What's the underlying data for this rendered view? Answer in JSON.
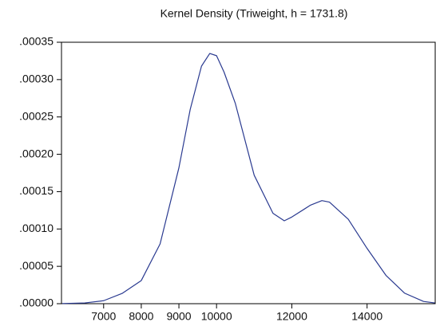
{
  "chart_data": {
    "type": "line",
    "title": "Kernel Density (Triweight, h =  1731.8)",
    "x": [
      5900,
      6500,
      7000,
      7500,
      8000,
      8500,
      9000,
      9300,
      9600,
      9820,
      10000,
      10200,
      10500,
      11000,
      11500,
      11800,
      12000,
      12500,
      12800,
      13000,
      13500,
      14000,
      14500,
      15000,
      15500,
      15800
    ],
    "series": [
      {
        "color": "#2a3a90",
        "values": [
          2e-07,
          1e-06,
          4e-06,
          1.4e-05,
          3.1e-05,
          8e-05,
          0.000182,
          0.00026,
          0.000318,
          0.000335,
          0.000332,
          0.00031,
          0.000268,
          0.000172,
          0.000121,
          0.000111,
          0.000116,
          0.000132,
          0.000138,
          0.000136,
          0.000113,
          7.4e-05,
          3.8e-05,
          1.4e-05,
          3e-06,
          1e-06
        ]
      }
    ],
    "xlim": [
      5880,
      15810
    ],
    "xticks": [
      7000,
      8000,
      9000,
      10000,
      12000,
      14000
    ],
    "ylim": [
      0,
      0.00035
    ],
    "yticks": [
      {
        "value": 0,
        "label": ".00000"
      },
      {
        "value": 5e-05,
        "label": ".00005"
      },
      {
        "value": 0.0001,
        "label": ".00010"
      },
      {
        "value": 0.00015,
        "label": ".00015"
      },
      {
        "value": 0.0002,
        "label": ".00020"
      },
      {
        "value": 0.00025,
        "label": ".00025"
      },
      {
        "value": 0.0003,
        "label": ".00030"
      },
      {
        "value": 0.00035,
        "label": ".00035"
      }
    ]
  }
}
